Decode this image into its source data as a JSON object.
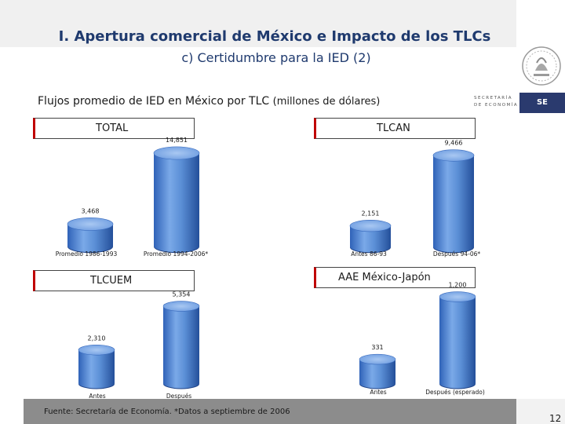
{
  "slide": {
    "title": "I. Apertura comercial de México e Impacto de los TLCs",
    "subtitle": "c) Certidumbre para la IED (2)",
    "heading_main": "Flujos promedio de IED en México por TLC",
    "heading_units": "(millones de dólares)",
    "logo_text_line1": "SECRETARÍA",
    "logo_text_line2": "DE ECONOMÍA",
    "logo_abbrev": "SE",
    "source": "Fuente: Secretaría de Economía. *Datos a septiembre de 2006",
    "page_number": "12",
    "bar_color": "#5b8fd6"
  },
  "chart_data": [
    {
      "type": "bar",
      "title": "TOTAL",
      "categories": [
        "Promedio 1986-1993",
        "Promedio 1994-2006*"
      ],
      "values": [
        3468,
        14851
      ],
      "value_labels": [
        "3,468",
        "14,851"
      ]
    },
    {
      "type": "bar",
      "title": "TLCAN",
      "categories": [
        "Antes 86-93",
        "Después 94-06*"
      ],
      "values": [
        2151,
        9466
      ],
      "value_labels": [
        "2,151",
        "9,466"
      ]
    },
    {
      "type": "bar",
      "title": "TLCUEM",
      "categories": [
        "Antes",
        "Después"
      ],
      "values": [
        2310,
        5354
      ],
      "value_labels": [
        "2,310",
        "5,354"
      ]
    },
    {
      "type": "bar",
      "title": "AAE México-Japón",
      "categories": [
        "Antes",
        "Después (esperado)"
      ],
      "values": [
        331,
        1200
      ],
      "value_labels": [
        "331",
        "1,200"
      ]
    }
  ]
}
